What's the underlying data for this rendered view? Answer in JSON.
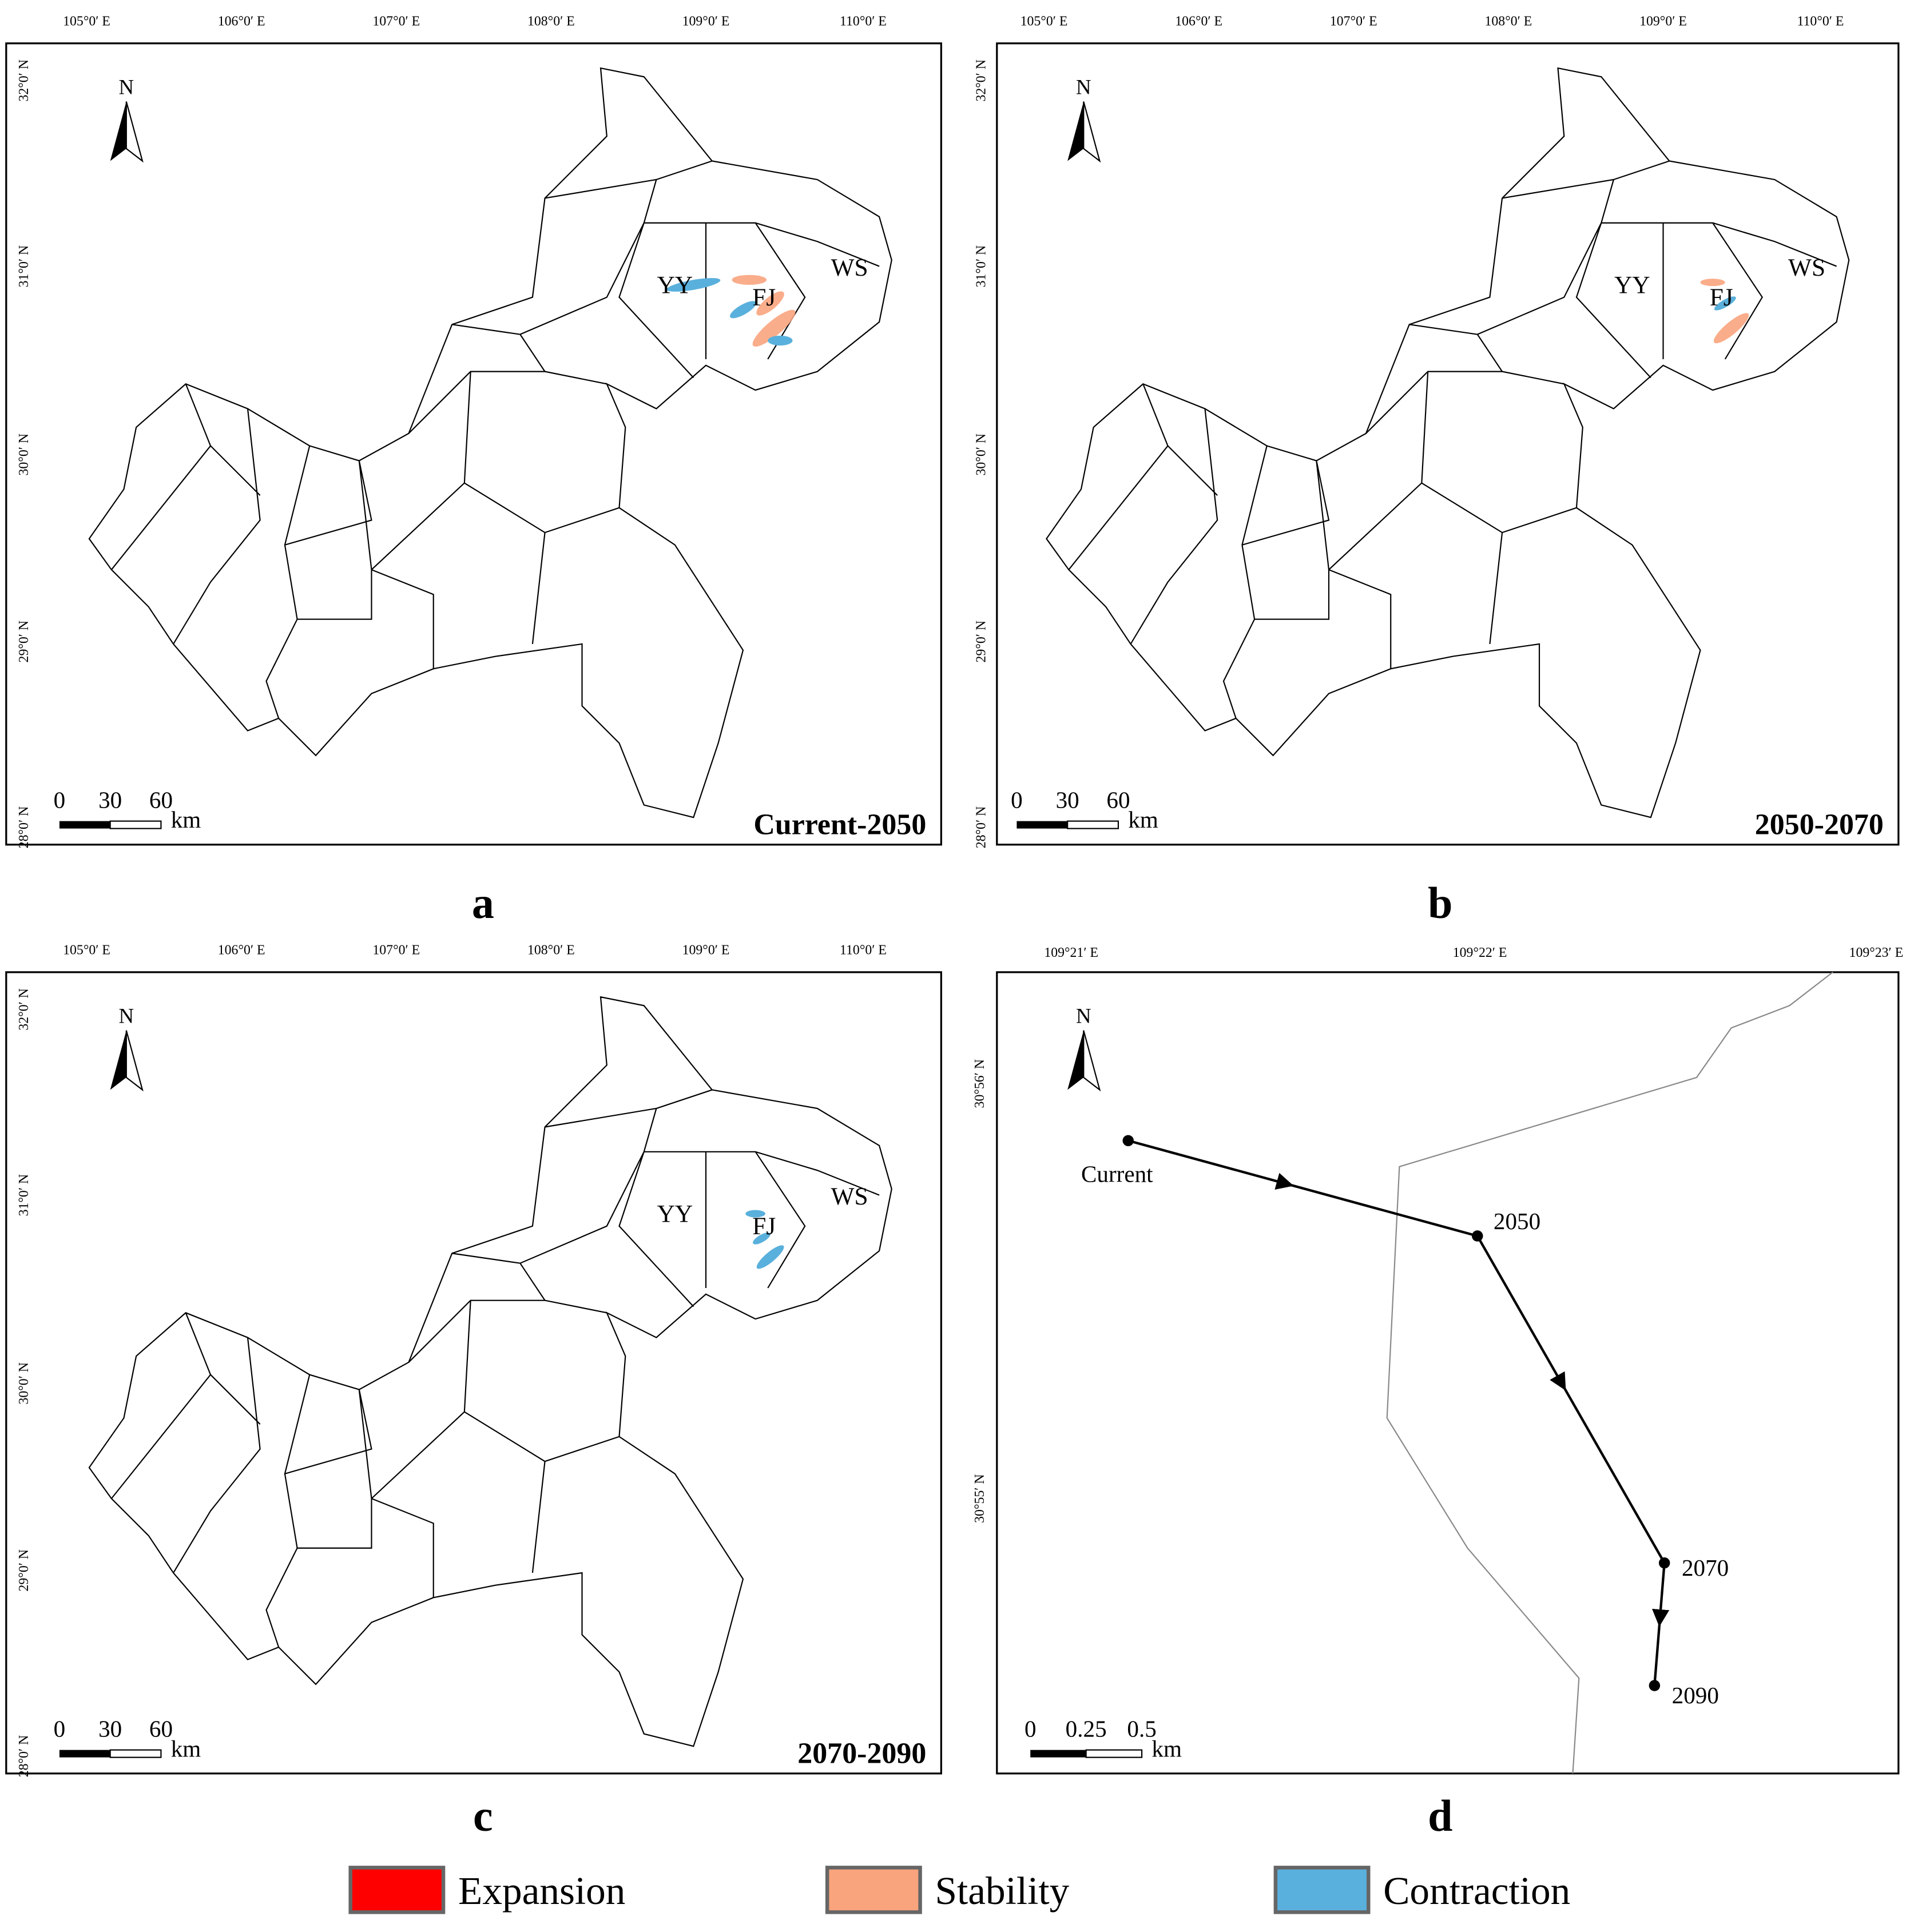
{
  "panels": [
    {
      "letter": "a",
      "period": "Current-2050",
      "x_labels": [
        "105°0′ E",
        "106°0′ E",
        "107°0′ E",
        "108°0′ E",
        "109°0′ E",
        "110°0′ E"
      ],
      "y_labels": [
        "32°0′ N",
        "31°0′ N",
        "30°0′ N",
        "29°0′ N",
        "28°0′ N"
      ],
      "north": "N",
      "scale": [
        "0",
        "30",
        "60",
        "km"
      ],
      "districts": [
        "YY",
        "FJ",
        "WS"
      ]
    },
    {
      "letter": "b",
      "period": "2050-2070",
      "x_labels": [
        "105°0′ E",
        "106°0′ E",
        "107°0′ E",
        "108°0′ E",
        "109°0′ E",
        "110°0′ E"
      ],
      "y_labels": [
        "32°0′ N",
        "31°0′ N",
        "30°0′ N",
        "29°0′ N",
        "28°0′ N"
      ],
      "north": "N",
      "scale": [
        "0",
        "30",
        "60",
        "km"
      ],
      "districts": [
        "YY",
        "FJ",
        "WS"
      ]
    },
    {
      "letter": "c",
      "period": "2070-2090",
      "x_labels": [
        "105°0′ E",
        "106°0′ E",
        "107°0′ E",
        "108°0′ E",
        "109°0′ E",
        "110°0′ E"
      ],
      "y_labels": [
        "32°0′ N",
        "31°0′ N",
        "30°0′ N",
        "29°0′ N",
        "28°0′ N"
      ],
      "north": "N",
      "scale": [
        "0",
        "30",
        "60",
        "km"
      ],
      "districts": [
        "YY",
        "FJ",
        "WS"
      ]
    },
    {
      "letter": "d",
      "x_labels": [
        "109°21′ E",
        "109°22′ E",
        "109°23′ E"
      ],
      "y_labels": [
        "30°56′ N",
        "30°55′ N"
      ],
      "north": "N",
      "scale": [
        "0",
        "0.25",
        "0.5",
        "km"
      ],
      "points": [
        "Current",
        "2050",
        "2070",
        "2090"
      ]
    }
  ],
  "legend": [
    {
      "label": "Expansion",
      "color": "#ff0000"
    },
    {
      "label": "Stability",
      "color": "#f9a47d"
    },
    {
      "label": "Contraction",
      "color": "#5ab0dc"
    }
  ]
}
